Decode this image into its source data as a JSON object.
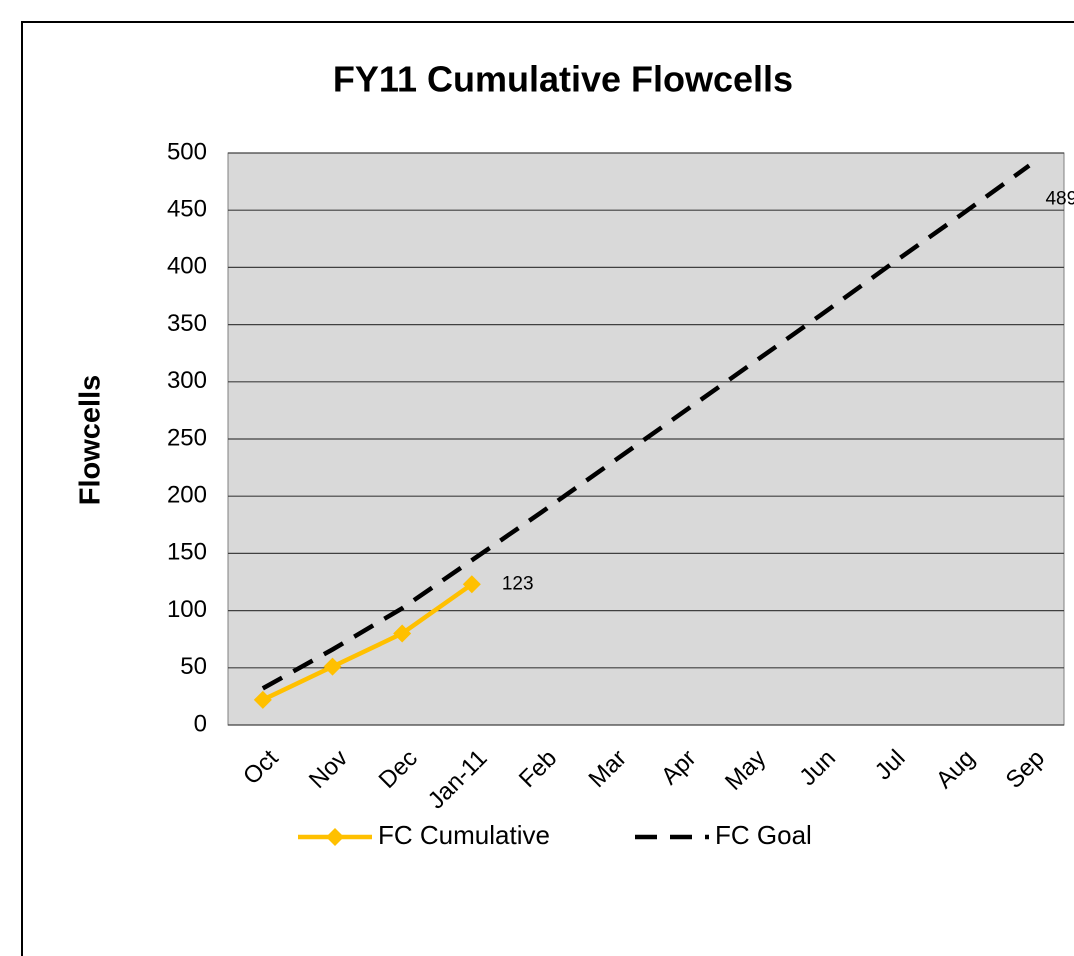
{
  "chart_data": {
    "type": "line",
    "title": "FY11 Cumulative Flowcells",
    "y_label": "Flowcells",
    "categories": [
      "Oct",
      "Nov",
      "Dec",
      "Jan-11",
      "Feb",
      "Mar",
      "Apr",
      "May",
      "Jun",
      "Jul",
      "Aug",
      "Sep"
    ],
    "series": [
      {
        "name": "FC Cumulative",
        "color": "#FFC000",
        "values": [
          22,
          51,
          80,
          123,
          null,
          null,
          null,
          null,
          null,
          null,
          null,
          null
        ]
      },
      {
        "name": "FC Goal",
        "color": "#000000",
        "dashed": true,
        "values": [
          32,
          66,
          102,
          144,
          186,
          229,
          272,
          315,
          358,
          402,
          445,
          489
        ]
      }
    ],
    "ylim": [
      0,
      500
    ],
    "yticks": [
      0,
      50,
      100,
      150,
      200,
      250,
      300,
      350,
      400,
      450,
      500
    ],
    "grid": true,
    "legend": "bottom",
    "plot_background": "#D9D9D9"
  }
}
